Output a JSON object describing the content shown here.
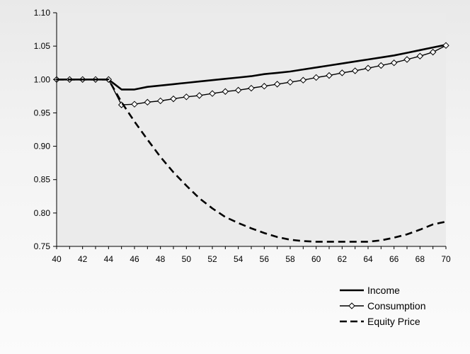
{
  "chart_data": {
    "type": "line",
    "title": "",
    "xlabel": "",
    "ylabel": "",
    "xlim": [
      40,
      70
    ],
    "ylim": [
      0.75,
      1.1
    ],
    "x_ticks": [
      40,
      42,
      44,
      46,
      48,
      50,
      52,
      54,
      56,
      58,
      60,
      62,
      64,
      66,
      68,
      70
    ],
    "y_ticks": [
      0.75,
      0.8,
      0.85,
      0.9,
      0.95,
      1.0,
      1.05,
      1.1
    ],
    "x_tick_labels": [
      "40",
      "42",
      "44",
      "46",
      "48",
      "50",
      "52",
      "54",
      "56",
      "58",
      "60",
      "62",
      "64",
      "66",
      "68",
      "70"
    ],
    "y_tick_labels": [
      "0.75",
      "0.80",
      "0.85",
      "0.90",
      "0.95",
      "1.00",
      "1.05",
      "1.10"
    ],
    "grid": false,
    "legend_position": "bottom-right",
    "x": [
      40,
      41,
      42,
      43,
      44,
      45,
      46,
      47,
      48,
      49,
      50,
      51,
      52,
      53,
      54,
      55,
      56,
      57,
      58,
      59,
      60,
      61,
      62,
      63,
      64,
      65,
      66,
      67,
      68,
      69,
      70
    ],
    "series": [
      {
        "name": "Income",
        "style": "solid",
        "color": "#000000",
        "values": [
          1.0,
          1.0,
          1.0,
          1.0,
          1.0,
          0.985,
          0.985,
          0.989,
          0.991,
          0.993,
          0.995,
          0.997,
          0.999,
          1.001,
          1.003,
          1.005,
          1.008,
          1.01,
          1.012,
          1.015,
          1.018,
          1.021,
          1.024,
          1.027,
          1.03,
          1.033,
          1.036,
          1.04,
          1.044,
          1.048,
          1.052
        ]
      },
      {
        "name": "Consumption",
        "style": "solid-diamond",
        "color": "#000000",
        "values": [
          1.0,
          1.0,
          1.0,
          1.0,
          1.0,
          0.962,
          0.963,
          0.966,
          0.968,
          0.971,
          0.974,
          0.976,
          0.979,
          0.982,
          0.984,
          0.987,
          0.99,
          0.993,
          0.996,
          0.999,
          1.003,
          1.006,
          1.01,
          1.013,
          1.017,
          1.021,
          1.025,
          1.03,
          1.035,
          1.041,
          1.051
        ]
      },
      {
        "name": "Equity Price",
        "style": "dashed",
        "color": "#000000",
        "values": [
          1.0,
          1.0,
          1.0,
          1.0,
          1.0,
          0.966,
          0.937,
          0.91,
          0.884,
          0.861,
          0.841,
          0.822,
          0.807,
          0.794,
          0.785,
          0.777,
          0.77,
          0.764,
          0.76,
          0.758,
          0.757,
          0.757,
          0.757,
          0.757,
          0.757,
          0.759,
          0.763,
          0.768,
          0.775,
          0.783,
          0.787
        ]
      }
    ]
  }
}
